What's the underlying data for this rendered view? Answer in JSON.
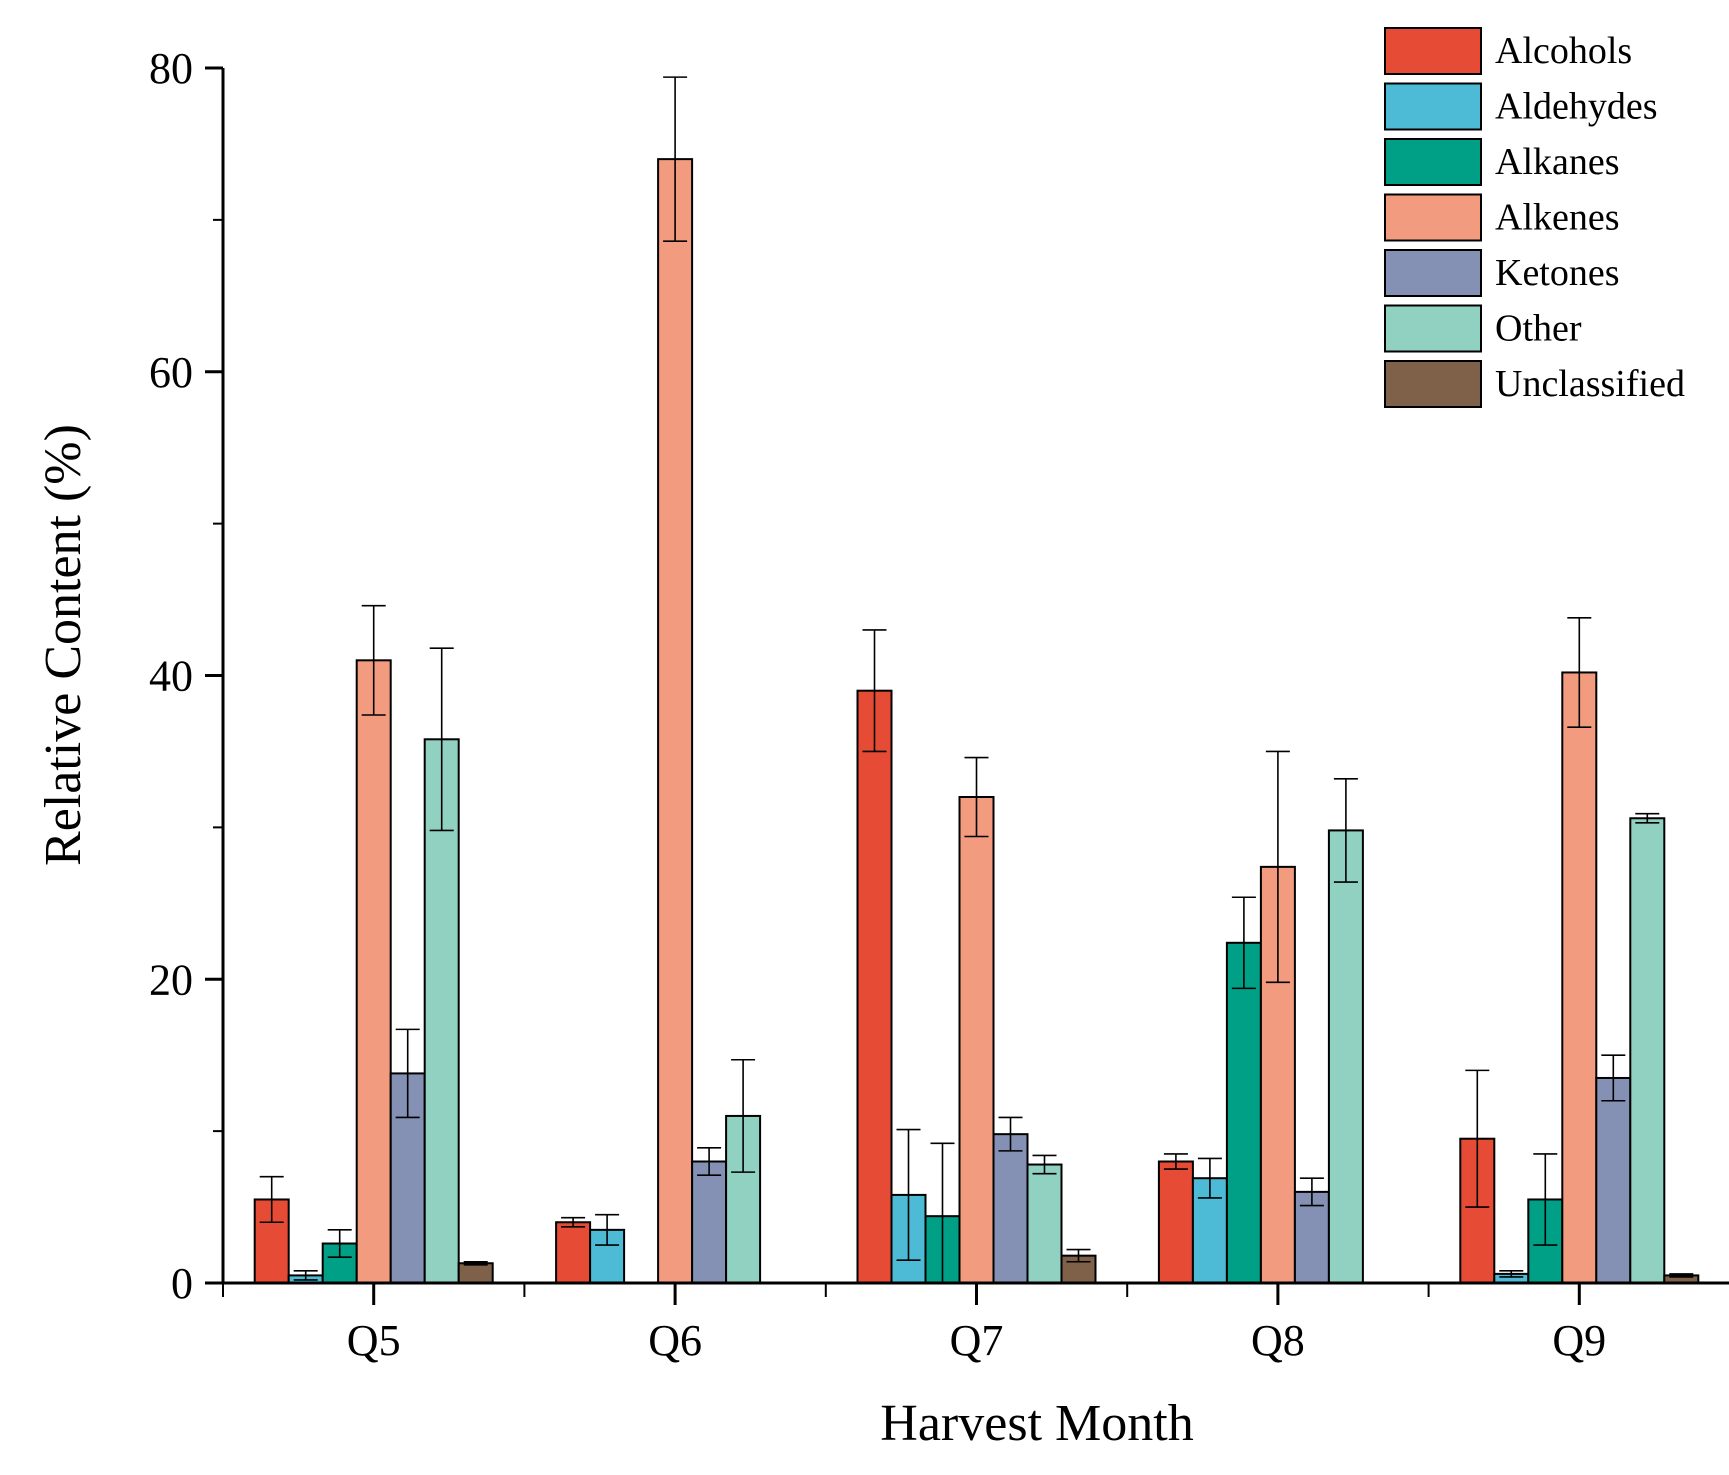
{
  "chart_data": {
    "type": "bar",
    "xlabel": "Harvest Month",
    "ylabel": "Relative Content (%)",
    "ylim": [
      0,
      80
    ],
    "yticks": [
      0,
      20,
      40,
      60,
      80
    ],
    "categories": [
      "Q5",
      "Q6",
      "Q7",
      "Q8",
      "Q9"
    ],
    "grid": false,
    "legend_position": "top-right",
    "series": [
      {
        "name": "Alcohols",
        "color": "#E64B35",
        "values": [
          5.5,
          4.0,
          39.0,
          8.0,
          9.5
        ],
        "errors": [
          1.5,
          0.3,
          4.0,
          0.5,
          4.5
        ]
      },
      {
        "name": "Aldehydes",
        "color": "#4DBBD5",
        "values": [
          0.5,
          3.5,
          5.8,
          6.9,
          0.6
        ],
        "errors": [
          0.3,
          1.0,
          4.3,
          1.3,
          0.2
        ]
      },
      {
        "name": "Alkanes",
        "color": "#00A087",
        "values": [
          2.6,
          null,
          4.4,
          22.4,
          5.5
        ],
        "errors": [
          0.9,
          null,
          4.8,
          3.0,
          3.0
        ]
      },
      {
        "name": "Alkenes",
        "color": "#F39B7F",
        "values": [
          41.0,
          74.0,
          32.0,
          27.4,
          40.2
        ],
        "errors": [
          3.6,
          5.4,
          2.6,
          7.6,
          3.6
        ]
      },
      {
        "name": "Ketones",
        "color": "#8491B4",
        "values": [
          13.8,
          8.0,
          9.8,
          6.0,
          13.5
        ],
        "errors": [
          2.9,
          0.9,
          1.1,
          0.9,
          1.5
        ]
      },
      {
        "name": "Other",
        "color": "#91D1C2",
        "values": [
          35.8,
          11.0,
          7.8,
          29.8,
          30.6
        ],
        "errors": [
          6.0,
          3.7,
          0.6,
          3.4,
          0.3
        ]
      },
      {
        "name": "Unclassified",
        "color": "#7E6148",
        "values": [
          1.3,
          null,
          1.8,
          null,
          0.5
        ],
        "errors": [
          0.1,
          null,
          0.4,
          null,
          0.1
        ]
      }
    ]
  }
}
